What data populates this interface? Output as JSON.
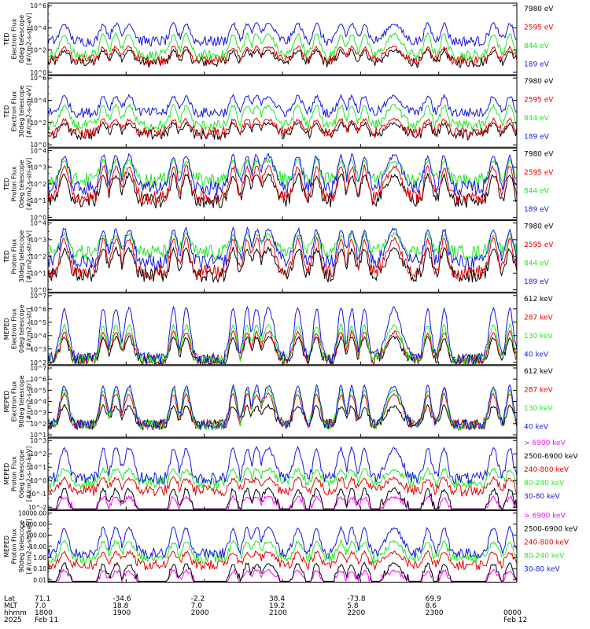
{
  "figure": {
    "colors": {
      "black": "#000000",
      "blue": "#1414e6",
      "red": "#e60000",
      "green": "#1ee61e",
      "magenta": "#ff00ff"
    }
  },
  "chart_data": [
    {
      "type": "line",
      "ylabel": [
        "TED",
        "Electron Flux",
        "0deg telescope",
        "[#/cm2-s-str-eV]"
      ],
      "y_tick_labels": [
        "10^6",
        "10^4",
        "10^2",
        "10^0"
      ],
      "ylim_log10": [
        0,
        6
      ],
      "y_log": true,
      "legend": [
        {
          "label": "7980 eV",
          "color": "black"
        },
        {
          "label": "2595 eV",
          "color": "red"
        },
        {
          "label": "844 eV",
          "color": "green"
        },
        {
          "label": "189 eV",
          "color": "blue"
        }
      ],
      "series": [
        {
          "name": "7980 eV",
          "color": "black",
          "log_base": 1.0,
          "log_peak": 2.0
        },
        {
          "name": "2595 eV",
          "color": "red",
          "log_base": 1.2,
          "log_peak": 2.3
        },
        {
          "name": "844 eV",
          "color": "green",
          "log_base": 1.6,
          "log_peak": 3.4
        },
        {
          "name": "189 eV",
          "color": "blue",
          "log_base": 2.8,
          "log_peak": 4.3
        }
      ]
    },
    {
      "type": "line",
      "ylabel": [
        "TED",
        "Electron Flux",
        "30deg telescope",
        "[#/cm2-s-str-eV]"
      ],
      "y_tick_labels": [
        "10^6",
        "10^4",
        "10^2",
        "10^0"
      ],
      "ylim_log10": [
        0,
        6
      ],
      "y_log": true,
      "legend": [
        {
          "label": "7980 eV",
          "color": "black"
        },
        {
          "label": "2595 eV",
          "color": "red"
        },
        {
          "label": "844 eV",
          "color": "green"
        },
        {
          "label": "189 eV",
          "color": "blue"
        }
      ],
      "series": [
        {
          "name": "7980 eV",
          "color": "black",
          "log_base": 1.0,
          "log_peak": 2.0
        },
        {
          "name": "2595 eV",
          "color": "red",
          "log_base": 1.2,
          "log_peak": 2.3
        },
        {
          "name": "844 eV",
          "color": "green",
          "log_base": 1.8,
          "log_peak": 3.5
        },
        {
          "name": "189 eV",
          "color": "blue",
          "log_base": 2.9,
          "log_peak": 4.3
        }
      ]
    },
    {
      "type": "line",
      "ylabel": [
        "TED",
        "Proton Flux",
        "0deg telescope",
        "[#/cm2-s-str-eV]"
      ],
      "y_tick_labels": [
        "10^4",
        "10^3",
        "10^2",
        "10^1",
        "10^0"
      ],
      "ylim_log10": [
        0,
        4.3
      ],
      "y_log": true,
      "legend": [
        {
          "label": "7980 eV",
          "color": "black"
        },
        {
          "label": "2595 eV",
          "color": "red"
        },
        {
          "label": "844 eV",
          "color": "green"
        },
        {
          "label": "189 eV",
          "color": "blue"
        }
      ],
      "series": [
        {
          "name": "7980 eV",
          "color": "black",
          "log_base": 1.1,
          "log_peak": 2.7
        },
        {
          "name": "2595 eV",
          "color": "red",
          "log_base": 1.3,
          "log_peak": 3.2
        },
        {
          "name": "844 eV",
          "color": "green",
          "log_base": 2.4,
          "log_peak": 3.6
        },
        {
          "name": "189 eV",
          "color": "blue",
          "log_base": 1.9,
          "log_peak": 3.9
        }
      ]
    },
    {
      "type": "line",
      "ylabel": [
        "TED",
        "Proton Flux",
        "30deg telescope",
        "[#/cm2-s-str-eV]"
      ],
      "y_tick_labels": [
        "10^4",
        "10^3",
        "10^2",
        "10^1",
        "10^0"
      ],
      "ylim_log10": [
        0,
        4.3
      ],
      "y_log": true,
      "legend": [
        {
          "label": "7980 eV",
          "color": "black"
        },
        {
          "label": "2595 eV",
          "color": "red"
        },
        {
          "label": "844 eV",
          "color": "green"
        },
        {
          "label": "189 eV",
          "color": "blue"
        }
      ],
      "series": [
        {
          "name": "7980 eV",
          "color": "black",
          "log_base": 1.0,
          "log_peak": 2.6
        },
        {
          "name": "2595 eV",
          "color": "red",
          "log_base": 1.2,
          "log_peak": 3.2
        },
        {
          "name": "844 eV",
          "color": "green",
          "log_base": 2.4,
          "log_peak": 3.5
        },
        {
          "name": "189 eV",
          "color": "blue",
          "log_base": 1.8,
          "log_peak": 3.8
        }
      ]
    },
    {
      "type": "line",
      "ylabel": [
        "MEPED",
        "Electron Flux",
        "0deg telescope",
        "[#/cm2-s-str]"
      ],
      "y_tick_labels": [
        "10^7",
        "10^6",
        "10^5",
        "10^4",
        "10^3",
        "10^2"
      ],
      "ylim_log10": [
        1.7,
        7
      ],
      "y_log": true,
      "legend": [
        {
          "label": "612 keV",
          "color": "black"
        },
        {
          "label": "287 keV",
          "color": "red"
        },
        {
          "label": "130 keV",
          "color": "green"
        },
        {
          "label": "40 keV",
          "color": "blue"
        }
      ],
      "series": [
        {
          "name": "612 keV",
          "color": "black",
          "log_base": 2.0,
          "log_peak": 3.7
        },
        {
          "name": "287 keV",
          "color": "red",
          "log_base": 2.0,
          "log_peak": 4.1
        },
        {
          "name": "130 keV",
          "color": "green",
          "log_base": 2.0,
          "log_peak": 4.6
        },
        {
          "name": "40 keV",
          "color": "blue",
          "log_base": 2.1,
          "log_peak": 5.9
        }
      ]
    },
    {
      "type": "line",
      "ylabel": [
        "MEPED",
        "Electron Flux",
        "90deg telescope",
        "[#/cm2-s-str]"
      ],
      "y_tick_labels": [
        "10^7",
        "10^6",
        "10^5",
        "10^4",
        "10^3",
        "10^2",
        "10^1"
      ],
      "ylim_log10": [
        1,
        7
      ],
      "y_log": true,
      "legend": [
        {
          "label": "612 keV",
          "color": "black"
        },
        {
          "label": "287 keV",
          "color": "red"
        },
        {
          "label": "130 keV",
          "color": "green"
        },
        {
          "label": "40 keV",
          "color": "blue"
        }
      ],
      "series": [
        {
          "name": "612 keV",
          "color": "black",
          "log_base": 2.0,
          "log_peak": 3.6
        },
        {
          "name": "287 keV",
          "color": "red",
          "log_base": 2.0,
          "log_peak": 4.6
        },
        {
          "name": "130 keV",
          "color": "green",
          "log_base": 2.0,
          "log_peak": 5.0
        },
        {
          "name": "40 keV",
          "color": "blue",
          "log_base": 2.0,
          "log_peak": 5.3
        }
      ]
    },
    {
      "type": "line",
      "ylabel": [
        "MEPED",
        "Proton Flux",
        "0deg telescope",
        "[#/cm2-s-str-keV]"
      ],
      "y_tick_labels": [
        "10^3",
        "10^2",
        "10^1",
        "10^0",
        "10^-1",
        "10^-2"
      ],
      "ylim_log10": [
        -2,
        3.3
      ],
      "y_log": true,
      "legend": [
        {
          "label": "> 6900 keV",
          "color": "magenta"
        },
        {
          "label": "2500-6900 keV",
          "color": "black"
        },
        {
          "label": "240-800 keV",
          "color": "red"
        },
        {
          "label": "80-240 keV",
          "color": "green"
        },
        {
          "label": "30-80 keV",
          "color": "blue"
        }
      ],
      "series": [
        {
          "name": "> 6900 keV",
          "color": "magenta",
          "log_base": -2.0,
          "log_peak": -1.1
        },
        {
          "name": "2500-6900 keV",
          "color": "black",
          "log_base": -2.0,
          "log_peak": -0.5
        },
        {
          "name": "240-800 keV",
          "color": "red",
          "log_base": -0.6,
          "log_peak": 0.3
        },
        {
          "name": "80-240 keV",
          "color": "green",
          "log_base": 0.0,
          "log_peak": 1.0
        },
        {
          "name": "30-80 keV",
          "color": "blue",
          "log_base": 0.3,
          "log_peak": 2.6
        }
      ]
    },
    {
      "type": "line",
      "ylabel": [
        "MEPED",
        "Proton Flux",
        "90deg telescope",
        "[#/cm2-s-str-keV]"
      ],
      "y_tick_labels": [
        "10000.00",
        "1000.00",
        "100.00",
        "10.00",
        "1.00",
        "0.10",
        "0.01"
      ],
      "ylim_log10": [
        -2,
        4
      ],
      "y_log": true,
      "legend": [
        {
          "label": "> 6900 keV",
          "color": "magenta"
        },
        {
          "label": "2500-6900 keV",
          "color": "black"
        },
        {
          "label": "240-800 keV",
          "color": "red"
        },
        {
          "label": "80-240 keV",
          "color": "green"
        },
        {
          "label": "30-80 keV",
          "color": "blue"
        }
      ],
      "series": [
        {
          "name": "> 6900 keV",
          "color": "magenta",
          "log_base": -2.0,
          "log_peak": -1.1
        },
        {
          "name": "2500-6900 keV",
          "color": "black",
          "log_base": -2.0,
          "log_peak": -0.5
        },
        {
          "name": "240-800 keV",
          "color": "red",
          "log_base": -0.6,
          "log_peak": 0.5
        },
        {
          "name": "80-240 keV",
          "color": "green",
          "log_base": 0.0,
          "log_peak": 1.4
        },
        {
          "name": "30-80 keV",
          "color": "blue",
          "log_base": 0.4,
          "log_peak": 2.6
        }
      ]
    }
  ],
  "x_axis": {
    "row_labels": [
      "Lat",
      "MLT",
      "hhmm",
      "2025"
    ],
    "columns": [
      {
        "values": [
          "71.1",
          "7.0",
          "1800",
          "Feb 11"
        ]
      },
      {
        "values": [
          "-34.6",
          "18.8",
          "1900",
          ""
        ]
      },
      {
        "values": [
          "-2.2",
          "7.0",
          "2000",
          ""
        ]
      },
      {
        "values": [
          "38.4",
          "19.2",
          "2100",
          ""
        ]
      },
      {
        "values": [
          "-73.8",
          "5.8",
          "2200",
          ""
        ]
      },
      {
        "values": [
          "69.9",
          "8.6",
          "2300",
          ""
        ]
      },
      {
        "values": [
          "",
          "",
          "0000",
          "Feb 12"
        ]
      }
    ]
  }
}
